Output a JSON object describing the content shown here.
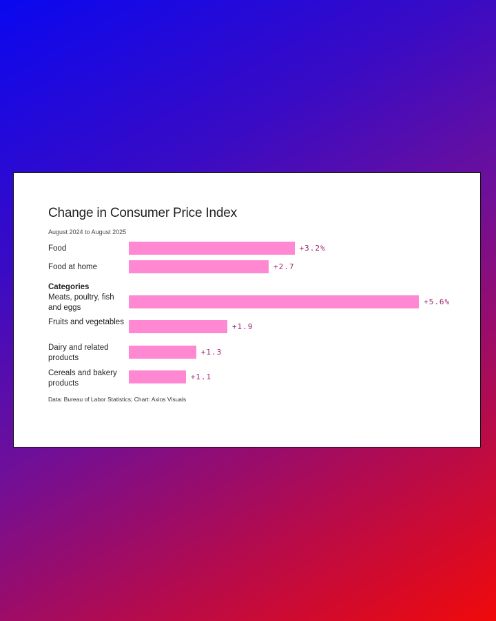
{
  "chart_data": {
    "type": "bar",
    "orientation": "horizontal",
    "title": "Change in Consumer Price Index",
    "subtitle": "August 2024 to August 2025",
    "section_label": "Categories",
    "categories": [
      "Food",
      "Food at home",
      "Meats, poultry, fish and eggs",
      "Fruits and vegetables",
      "Dairy and related products",
      "Cereals and bakery products"
    ],
    "values": [
      3.2,
      2.7,
      5.6,
      1.9,
      1.3,
      1.1
    ],
    "value_labels": [
      "+3.2%",
      "+2.7",
      "+5.6%",
      "+1.9",
      "+1.3",
      "+1.1"
    ],
    "xlim": [
      0,
      5.6
    ],
    "grid": false,
    "bar_color": "#ff88d2",
    "value_label_color": "#a0246e",
    "source": "Data: Bureau of Labor Statistics; Chart: Axios Visuals"
  }
}
